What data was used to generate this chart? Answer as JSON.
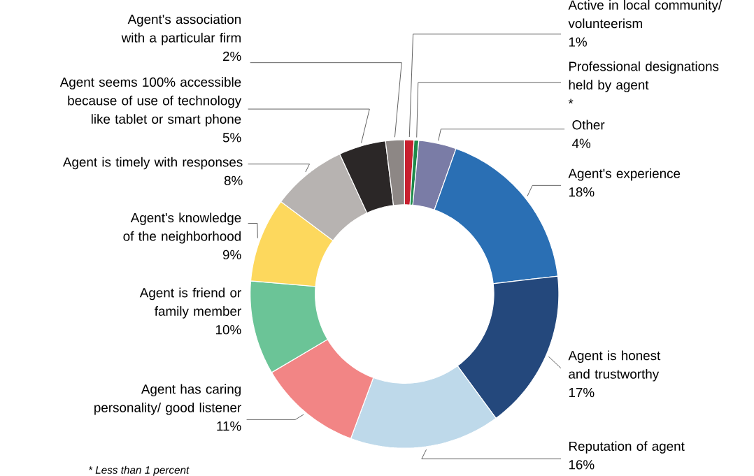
{
  "chart_data": {
    "type": "donut",
    "categories": [
      "Active in local community/ volunteerism",
      "Professional designations held by agent",
      "Other",
      "Agent's experience",
      "Agent is honest and trustworthy",
      "Reputation of agent",
      "Agent has caring personality/ good listener",
      "Agent is friend or family member",
      "Agent's knowledge of the neighborhood",
      "Agent is timely with responses",
      "Agent seems 100% accessible because of use of technology like tablet or smart phone",
      "Agent's association with a particular firm"
    ],
    "values": [
      1,
      0.5,
      4,
      18,
      17,
      16,
      11,
      10,
      9,
      8,
      5,
      2
    ],
    "value_labels": [
      "1%",
      "*",
      "4%",
      "18%",
      "17%",
      "16%",
      "11%",
      "10%",
      "9%",
      "8%",
      "5%",
      "2%"
    ],
    "colors": [
      "#c8202f",
      "#1e8a4a",
      "#7a7ca6",
      "#2a6fb4",
      "#24487c",
      "#bed9ea",
      "#f28585",
      "#6bc497",
      "#fdd85d",
      "#b7b3b1",
      "#2b2727",
      "#8d8785"
    ],
    "annotations": [
      "* Less than 1 percent"
    ]
  }
}
